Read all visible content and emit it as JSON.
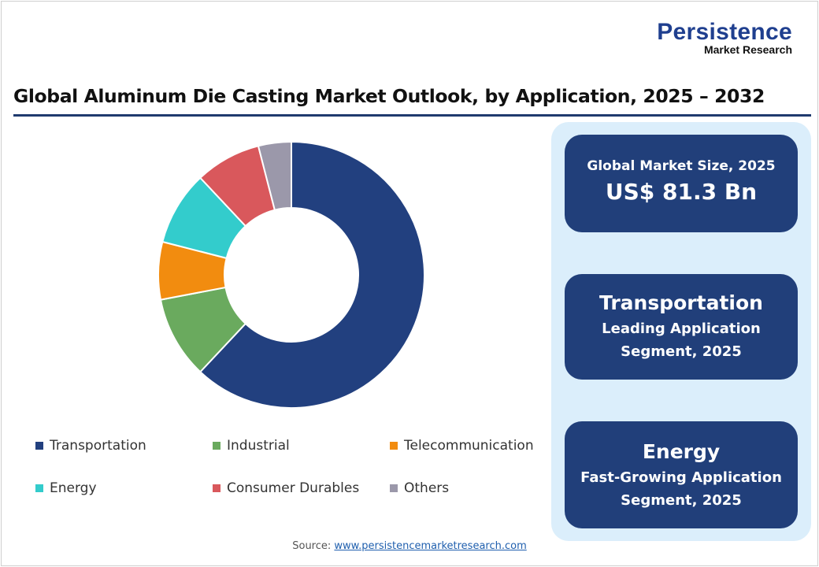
{
  "logo": {
    "line1": "Persistence",
    "line2": "Market Research"
  },
  "title": "Global Aluminum Die Casting Market Outlook, by Application, 2025 – 2032",
  "chart_data": {
    "type": "pie",
    "donut": true,
    "categories": [
      "Transportation",
      "Industrial",
      "Telecommunication",
      "Energy",
      "Consumer Durables",
      "Others"
    ],
    "values": [
      62,
      10,
      7,
      9,
      8,
      4
    ],
    "unit": "%",
    "colors": [
      "#22407f",
      "#6aaa5e",
      "#f28c0f",
      "#33cccc",
      "#d9585c",
      "#9b98aa"
    ],
    "legend_position": "bottom"
  },
  "panel": {
    "market_size_label": "Global Market Size, 2025",
    "market_size_value": "US$ 81.3 Bn",
    "leading_segment": "Transportation",
    "leading_line1": "Leading Application",
    "leading_line2": "Segment, 2025",
    "fast_segment": "Energy",
    "fast_line1": "Fast-Growing Application",
    "fast_line2": "Segment, 2025"
  },
  "source": {
    "label": "Source:",
    "link": "www.persistencemarketresearch.com"
  }
}
